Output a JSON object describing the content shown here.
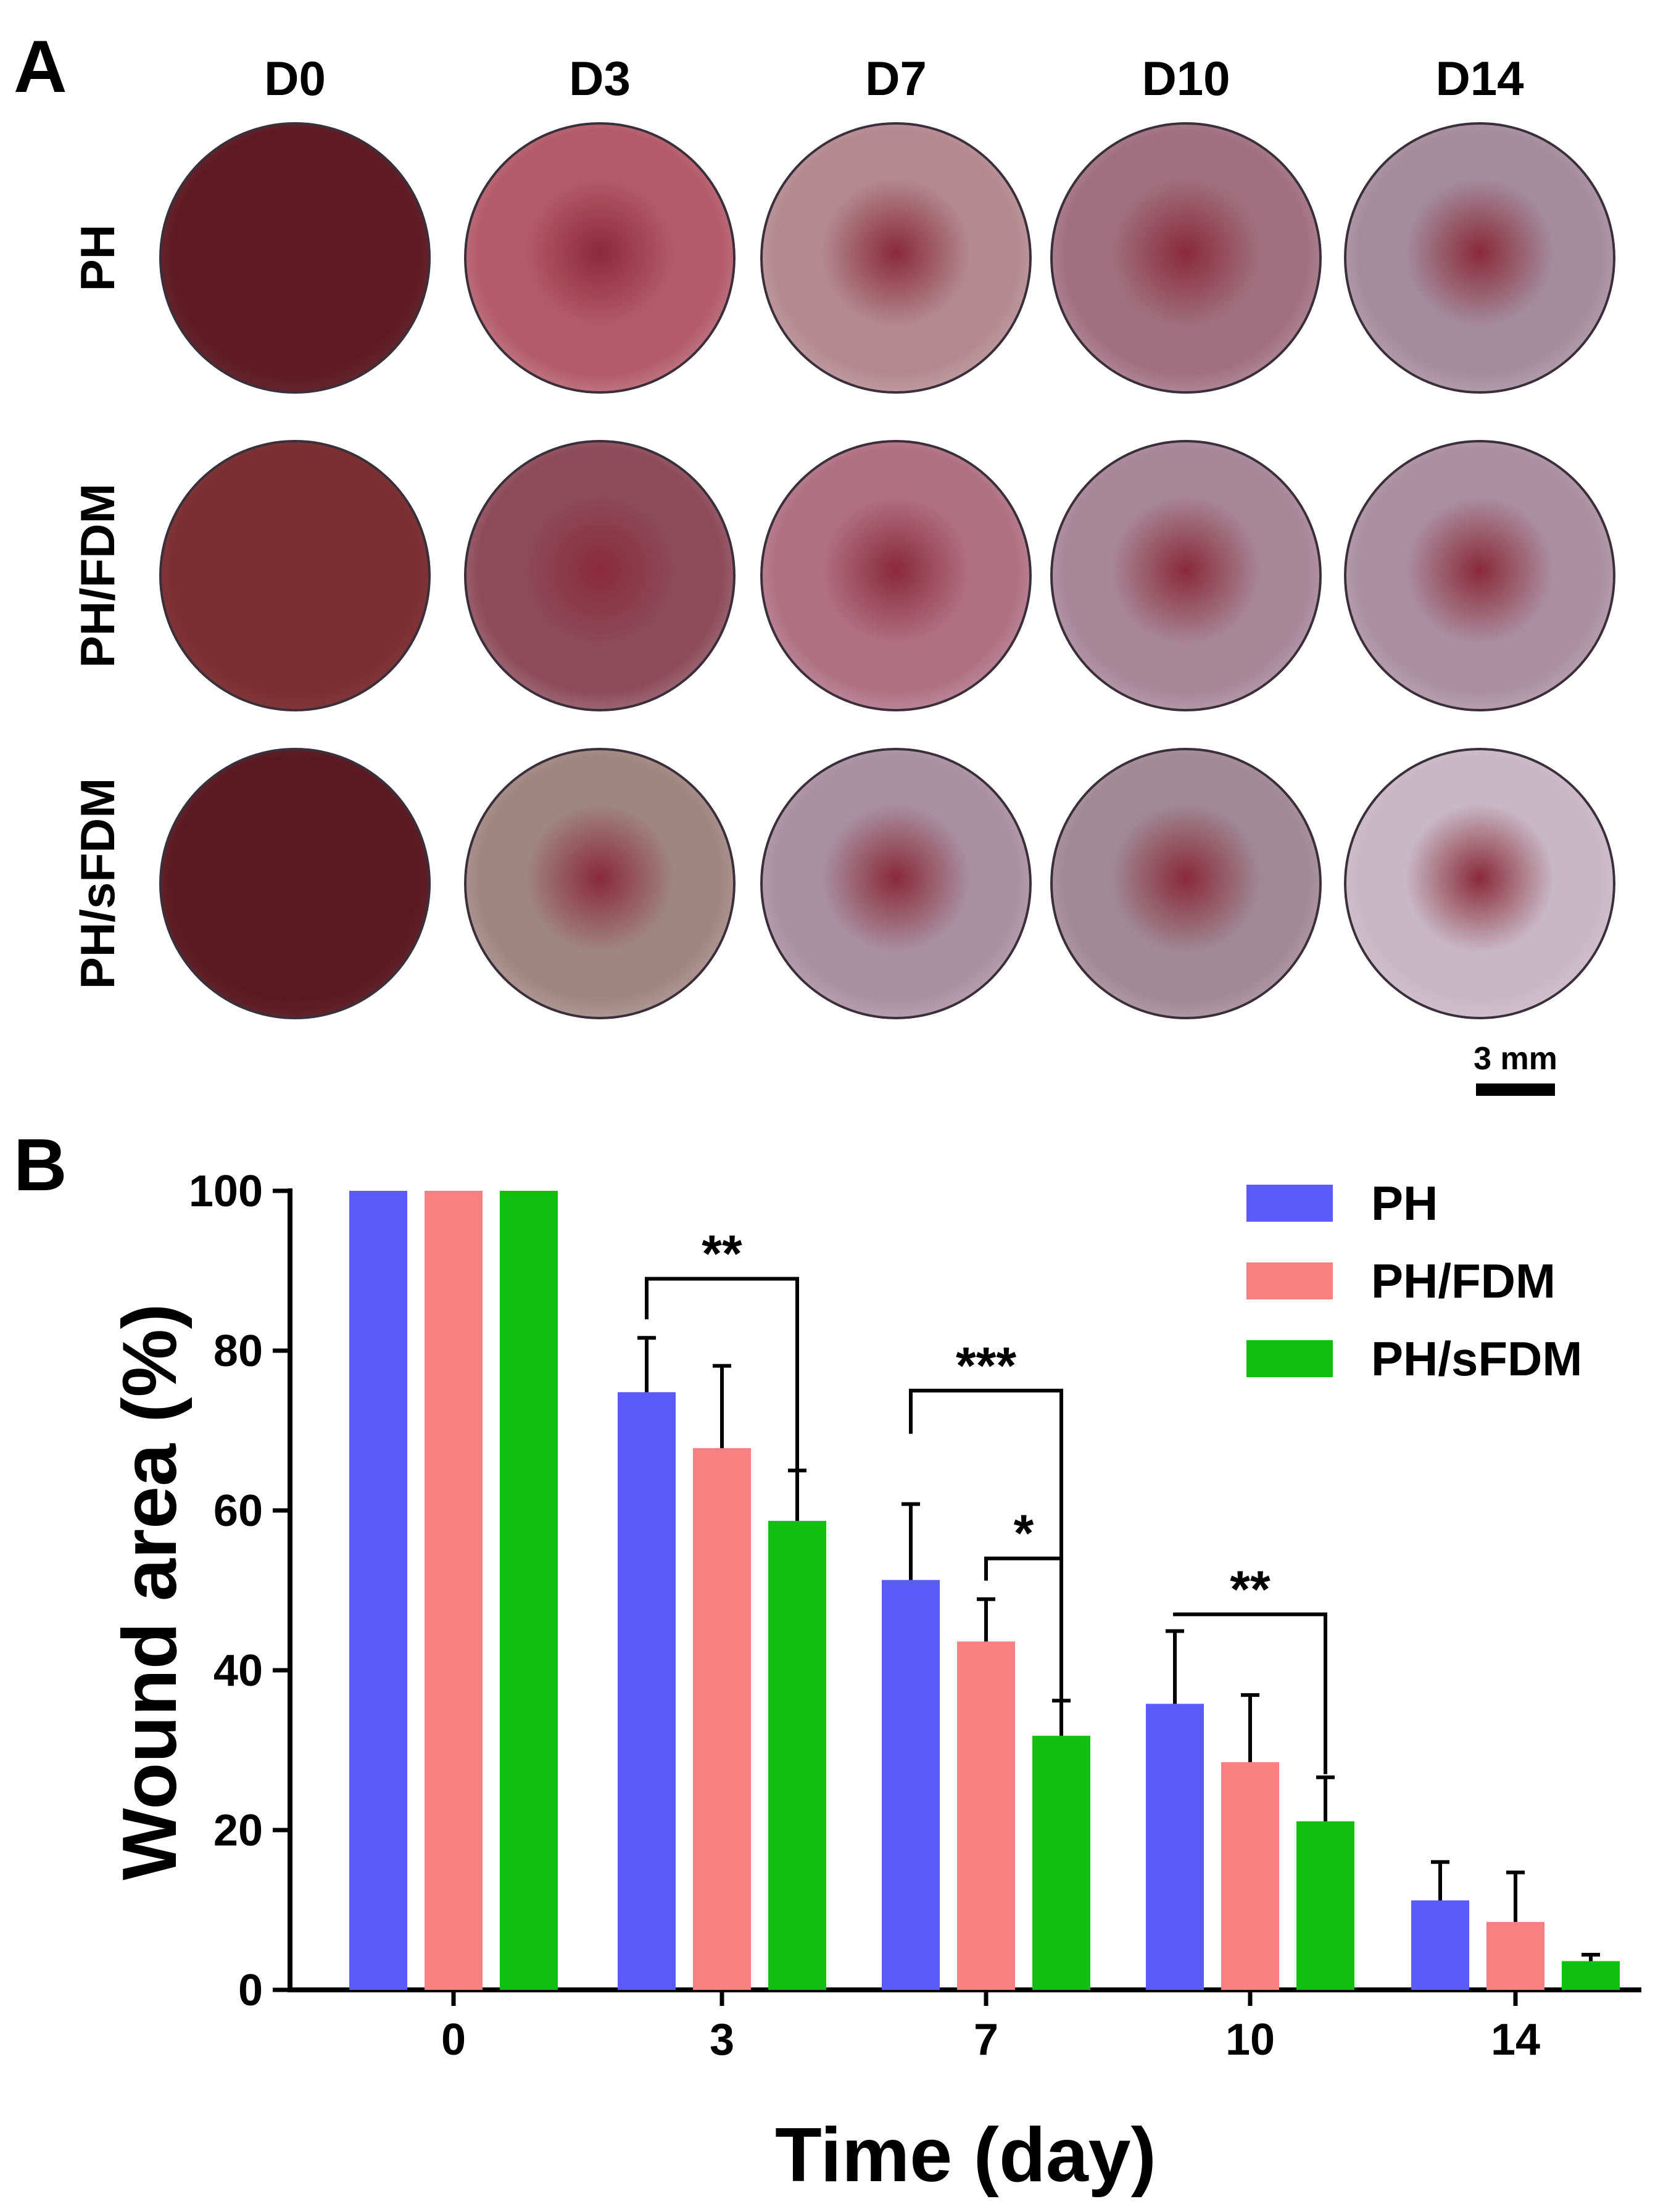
{
  "panel_a": {
    "letter": "A",
    "days": [
      "D0",
      "D3",
      "D7",
      "D10",
      "D14"
    ],
    "groups": [
      "PH",
      "PH/FDM",
      "PH/sFDM"
    ],
    "scale_bar_label": "3 mm",
    "photo_colors": [
      [
        "#5e1a22",
        "#b45a68",
        "#b38990",
        "#a07080",
        "#a48c9c"
      ],
      [
        "#7a2e30",
        "#8c4a5a",
        "#b07084",
        "#a78696",
        "#ab8fa0"
      ],
      [
        "#5a1820",
        "#a08680",
        "#a990a0",
        "#a08894",
        "#c8b8c4"
      ]
    ]
  },
  "panel_b": {
    "letter": "B"
  },
  "chart_data": {
    "type": "bar",
    "title": "",
    "xlabel": "Time (day)",
    "ylabel": "Wound area (%)",
    "ylim": [
      0,
      100
    ],
    "yticks": [
      0,
      20,
      40,
      60,
      80,
      100
    ],
    "categories": [
      "0",
      "3",
      "7",
      "10",
      "14"
    ],
    "legend_position": "top-right",
    "series": [
      {
        "name": "PH",
        "color": "#5b5bf7",
        "values": [
          100,
          74.8,
          51.3,
          35.8,
          11.2
        ],
        "errors": [
          0,
          6.8,
          9.5,
          9.1,
          4.8
        ]
      },
      {
        "name": "PH/FDM",
        "color": "#f88080",
        "values": [
          100,
          67.8,
          43.6,
          28.5,
          8.5
        ],
        "errors": [
          0,
          10.3,
          5.3,
          8.4,
          6.2
        ]
      },
      {
        "name": "PH/sFDM",
        "color": "#10c010",
        "values": [
          100,
          58.7,
          31.8,
          21.1,
          3.6
        ],
        "errors": [
          0,
          6.3,
          4.4,
          5.5,
          0.8
        ]
      }
    ],
    "significance": [
      {
        "label": "**",
        "category": 1,
        "from_series": 0,
        "to_series": 2,
        "bracket_y": 89,
        "drop_to": 59
      },
      {
        "label": "***",
        "category": 2,
        "from_series": 0,
        "to_series": 2,
        "bracket_y": 75,
        "drop_to": 33
      },
      {
        "label": "*",
        "category": 2,
        "from_series": 1,
        "to_series": 2,
        "bracket_y": 54,
        "drop_to": 49
      },
      {
        "label": "**",
        "category": 3,
        "from_series": 0,
        "to_series": 2,
        "bracket_y": 47,
        "drop_to": 27
      }
    ]
  }
}
